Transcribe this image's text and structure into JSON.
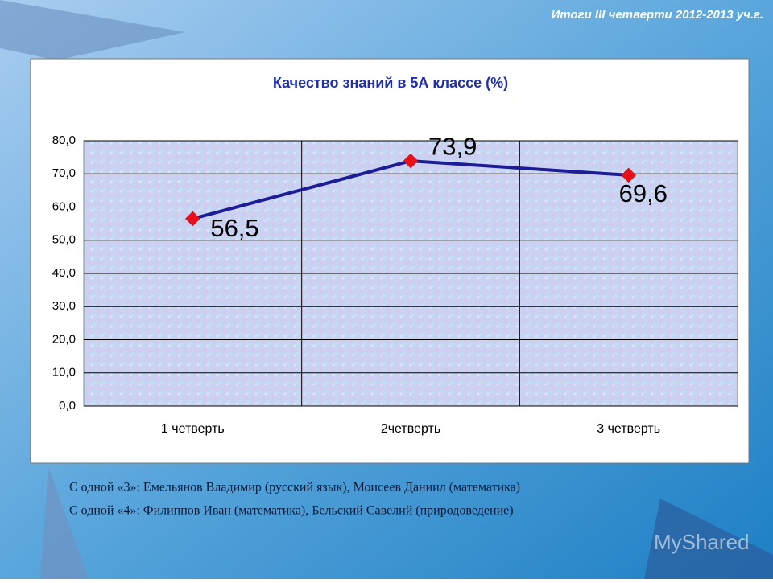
{
  "header": {
    "title": "Итоги III четверти 2012-2013 уч.г."
  },
  "chart_data": {
    "type": "line",
    "title": "Качество знаний в 5А классе (%)",
    "categories": [
      "1 четверть",
      "2четверть",
      "3 четверть"
    ],
    "series": [
      {
        "name": "Качество знаний",
        "color": "#1c1c96",
        "marker_color": "#e8101a",
        "values": [
          56.5,
          73.9,
          69.6
        ],
        "value_labels": [
          "56,5",
          "73,9",
          "69,6"
        ]
      }
    ],
    "ylim": [
      0,
      80
    ],
    "yticks": [
      {
        "value": 0,
        "label": "0,0"
      },
      {
        "value": 10,
        "label": "10,0"
      },
      {
        "value": 20,
        "label": "20,0"
      },
      {
        "value": 30,
        "label": "30,0"
      },
      {
        "value": 40,
        "label": "40,0"
      },
      {
        "value": 50,
        "label": "50,0"
      },
      {
        "value": 60,
        "label": "60,0"
      },
      {
        "value": 70,
        "label": "70,0"
      },
      {
        "value": 80,
        "label": "80,0"
      }
    ],
    "grid": true,
    "legend": false
  },
  "notes": [
    "С одной «3»: Емельянов Владимир (русский язык), Моисеев Даниил (математика)",
    "С одной «4»: Филиппов Иван (математика),  Бельский Савелий (природоведение)"
  ],
  "watermark": "MyShared"
}
